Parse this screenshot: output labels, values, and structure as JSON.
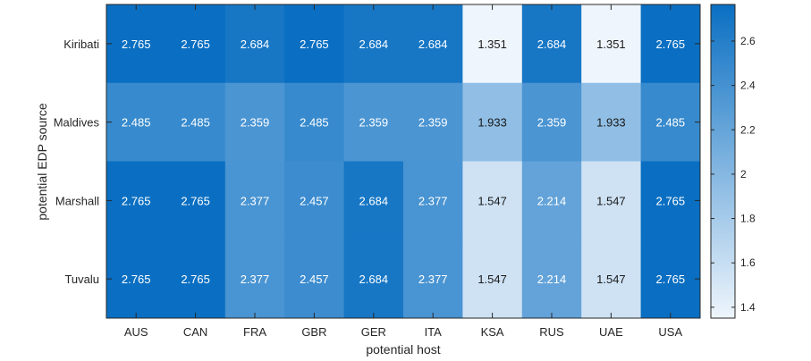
{
  "chart_data": {
    "type": "heatmap",
    "title": "",
    "xlabel": "potential host",
    "ylabel": "potential EDP source",
    "x_categories": [
      "AUS",
      "CAN",
      "FRA",
      "GBR",
      "GER",
      "ITA",
      "KSA",
      "RUS",
      "UAE",
      "USA"
    ],
    "y_categories": [
      "Kiribati",
      "Maldives",
      "Marshall",
      "Tuvalu"
    ],
    "values": [
      [
        2.765,
        2.765,
        2.684,
        2.765,
        2.684,
        2.684,
        1.351,
        2.684,
        1.351,
        2.765
      ],
      [
        2.485,
        2.485,
        2.359,
        2.485,
        2.359,
        2.359,
        1.933,
        2.359,
        1.933,
        2.485
      ],
      [
        2.765,
        2.765,
        2.377,
        2.457,
        2.684,
        2.377,
        1.547,
        2.214,
        1.547,
        2.765
      ],
      [
        2.765,
        2.765,
        2.377,
        2.457,
        2.684,
        2.377,
        1.547,
        2.214,
        1.547,
        2.765
      ]
    ],
    "colorbar": {
      "range": [
        1.351,
        2.765
      ],
      "ticks": [
        1.4,
        1.6,
        1.8,
        2,
        2.2,
        2.4,
        2.6
      ],
      "tick_labels": [
        "1.4",
        "1.6",
        "1.8",
        "2",
        "2.2",
        "2.4",
        "2.6"
      ],
      "low_color": "#eef5fc",
      "high_color": "#0a6fc2"
    },
    "grid": false
  }
}
